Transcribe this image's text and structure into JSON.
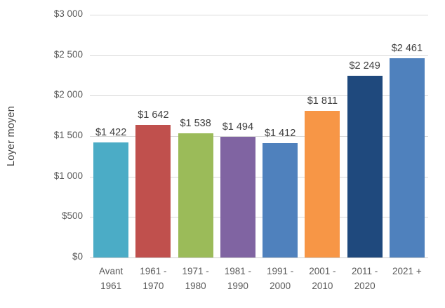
{
  "chart_data": {
    "type": "bar",
    "title": "",
    "xlabel": "",
    "ylabel": "Loyer moyen",
    "categories": [
      "Avant\n1961",
      "1961 -\n1970",
      "1971 -\n1980",
      "1981 -\n1990",
      "1991 -\n2000",
      "2001 -\n2010",
      "2011 -\n2020",
      "2021 +"
    ],
    "values": [
      1422,
      1642,
      1538,
      1494,
      1412,
      1811,
      2249,
      2461
    ],
    "value_labels": [
      "$1 422",
      "$1 642",
      "$1 538",
      "$1 494",
      "$1 412",
      "$1 811",
      "$2 249",
      "$2 461"
    ],
    "bar_colors": [
      "#4BACC6",
      "#C0504D",
      "#9BBB59",
      "#8064A2",
      "#4F81BD",
      "#F79646",
      "#1F497D",
      "#4F81BD"
    ],
    "ylim": [
      0,
      3000
    ],
    "ytick_step": 500,
    "ytick_labels": [
      "$0",
      "$500",
      "$1 000",
      "$1 500",
      "$2 000",
      "$2 500",
      "$3 000"
    ],
    "grid": true,
    "legend": false,
    "gridline_color": "#D9D9D9",
    "axis_line_color": "#CFCFCF",
    "tick_text_color": "#595959",
    "label_text_color": "#404040"
  }
}
